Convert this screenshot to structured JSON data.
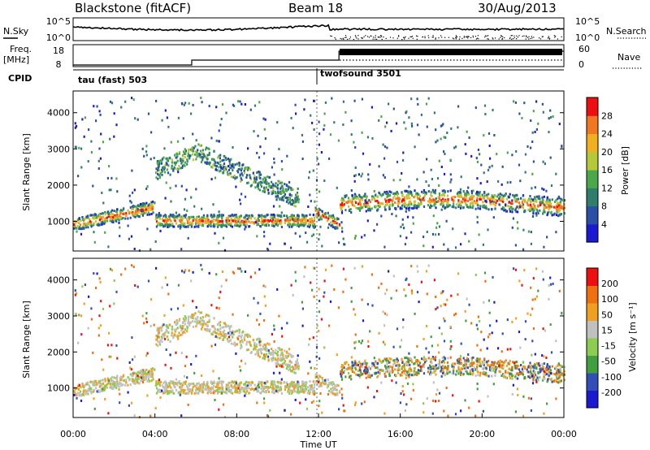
{
  "header": {
    "station": "Blackstone (fitACF)",
    "beam": "Beam 18",
    "date": "30/Aug/2013"
  },
  "top_panels": {
    "nsky": {
      "label": "N.Sky",
      "tick_top": "10^5",
      "tick_bottom": "10^0",
      "right_label": "N.Search",
      "right_tick_top": "10^5",
      "right_tick_bottom": "10^0"
    },
    "freq": {
      "label_line1": "Freq.",
      "label_line2": "[MHz]",
      "tick_top": "18",
      "tick_bottom": "8",
      "right_label": "Nave",
      "right_tick_top": "60",
      "right_tick_bottom": "0"
    },
    "cpid": {
      "label": "CPID",
      "program1": "tau (fast) 503",
      "program2": "twofsound 3501"
    }
  },
  "chart_data": [
    {
      "type": "heatmap",
      "name": "power",
      "ylabel": "Slant Range [km]",
      "xlabel": "",
      "xlim": [
        0,
        24
      ],
      "ylim": [
        180,
        4600
      ],
      "y_ticks": [
        "1000",
        "2000",
        "3000",
        "4000"
      ],
      "colorbar": {
        "label": "Power [dB]",
        "ticks": [
          "4",
          "8",
          "12",
          "16",
          "20",
          "24",
          "28"
        ],
        "colors": [
          "#1a1ad0",
          "#2a4fa8",
          "#2f7d6c",
          "#4aa84a",
          "#b5c83a",
          "#f0b020",
          "#f07820",
          "#ee1010"
        ]
      },
      "features": [
        {
          "desc": "main band",
          "time_start": 0.0,
          "time_end": 11.8,
          "range_km": 1000
        },
        {
          "desc": "band after program change",
          "time_start": 13.0,
          "time_end": 24.0,
          "range_km": 1500
        }
      ]
    },
    {
      "type": "heatmap",
      "name": "velocity",
      "ylabel": "Slant Range [km]",
      "xlabel": "Time UT",
      "xlim": [
        0,
        24
      ],
      "ylim": [
        180,
        4600
      ],
      "x_ticks": [
        "00:00",
        "04:00",
        "08:00",
        "12:00",
        "16:00",
        "20:00",
        "00:00"
      ],
      "y_ticks": [
        "1000",
        "2000",
        "3000",
        "4000"
      ],
      "colorbar": {
        "label": "Velocity [m s⁻¹]",
        "ticks": [
          "200",
          "100",
          "50",
          "15",
          "-15",
          "-50",
          "-100",
          "-200"
        ],
        "colors": [
          "#1a1ad0",
          "#3050b8",
          "#40a040",
          "#8ccc50",
          "#c0c0c0",
          "#f0a020",
          "#f07010",
          "#ee1010"
        ]
      }
    }
  ]
}
